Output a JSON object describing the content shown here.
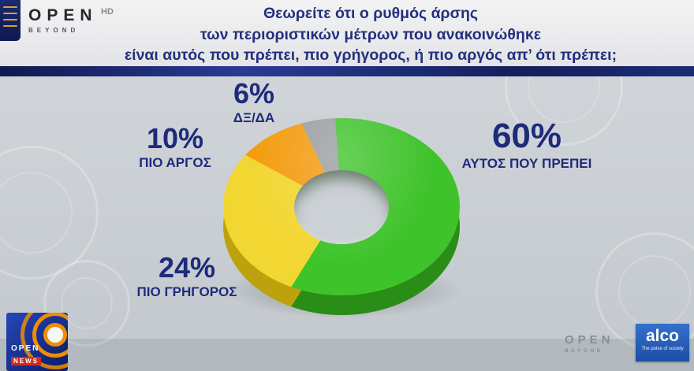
{
  "header": {
    "channel": {
      "name": "OPEN",
      "sub": "BEYOND",
      "hd": "HD"
    },
    "question_lines": [
      "Θεωρείτε ότι ο ρυθμός άρσης",
      "των περιοριστικών μέτρων που ανακοινώθηκε",
      "είναι αυτός που πρέπει, πιο γρήγορος, ή πιο αργός απ’ ότι πρέπει;"
    ]
  },
  "chart_data": {
    "type": "pie",
    "donut": true,
    "title": "Θεωρείτε ότι ο ρυθμός άρσης των περιοριστικών μέτρων που ανακοινώθηκε είναι αυτός που πρέπει, πιο γρήγορος, ή πιο αργός απ’ ότι πρέπει;",
    "start_angle_deg": -4,
    "legend": "labels-around-chart",
    "slices": [
      {
        "label": "ΑΥΤΟΣ ΠΟΥ ΠΡΕΠΕΙ",
        "value": 60,
        "pct_text": "60%",
        "color": "#3fc32b",
        "dark_color": "#2b9318"
      },
      {
        "label": "ΠΙΟ ΓΡΗΓΟΡΟΣ",
        "value": 24,
        "pct_text": "24%",
        "color": "#f2d631",
        "dark_color": "#c5a90f"
      },
      {
        "label": "ΠΙΟ ΑΡΓΟΣ",
        "value": 10,
        "pct_text": "10%",
        "color": "#f39b0e",
        "dark_color": "#bf7507"
      },
      {
        "label": "ΔΞ/ΔΑ",
        "value": 6,
        "pct_text": "6%",
        "color": "#9b9da0",
        "dark_color": "#737578"
      }
    ]
  },
  "footer": {
    "open_news": {
      "line1": "OPEN",
      "line2": "NEWS"
    },
    "open_beyond": {
      "name": "OPEN",
      "sub": "BEYOND"
    },
    "alco": {
      "name": "alco",
      "tagline": "The pulse of society"
    }
  },
  "colors": {
    "question_text": "#24307e",
    "divider_bar": "#16205e",
    "background": "#cbd0d5",
    "label_text": "#1e2a7a"
  }
}
